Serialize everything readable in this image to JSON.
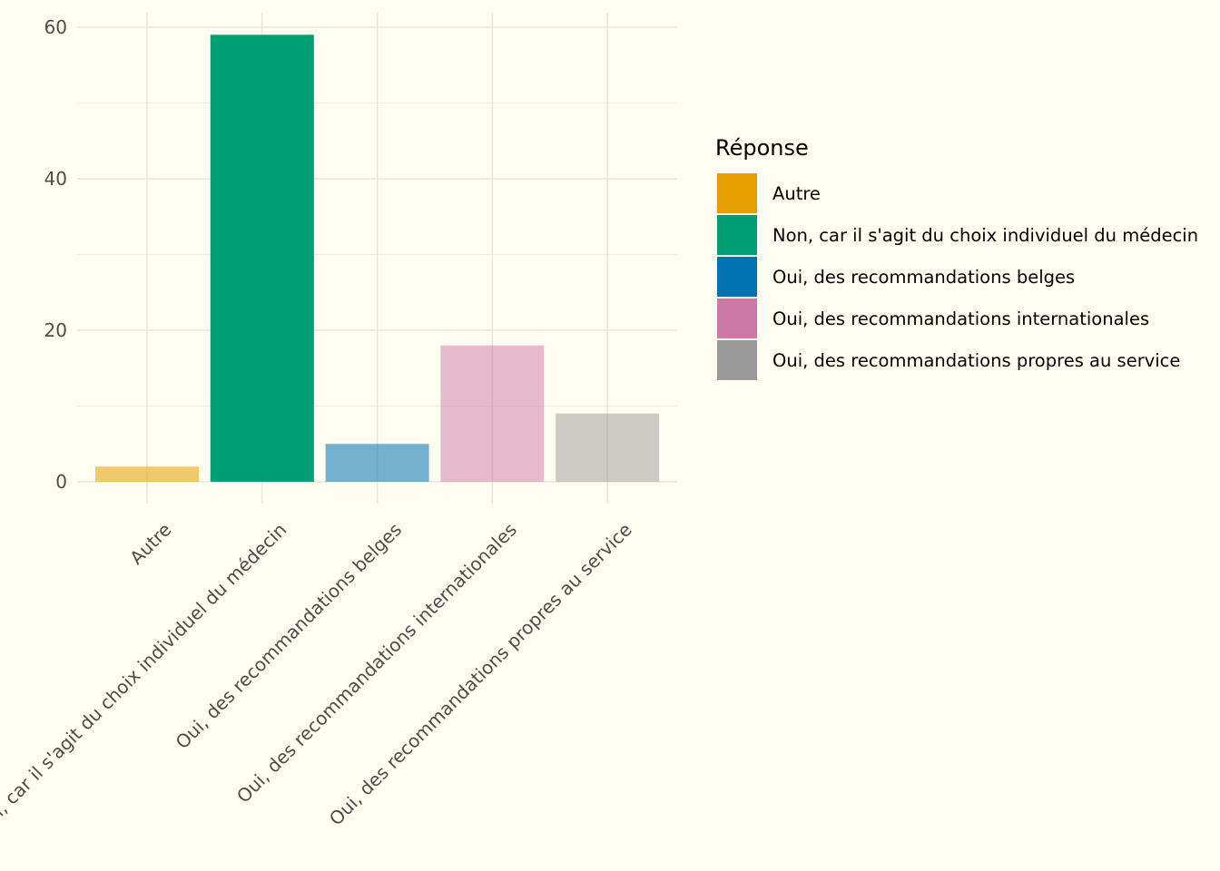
{
  "chart_data": {
    "type": "bar",
    "title": "",
    "xlabel": "",
    "ylabel": "",
    "categories": [
      "Autre",
      "Non, car il s'agit du choix individuel du médecin",
      "Oui, des recommandations belges",
      "Oui, des recommandations internationales",
      "Oui, des recommandations propres au service"
    ],
    "values": [
      2,
      59,
      5,
      18,
      9
    ],
    "y_ticks": [
      0,
      20,
      40,
      60
    ],
    "ylim": [
      0,
      60
    ],
    "grid": true,
    "legend": {
      "title": "Réponse",
      "placement": "right",
      "entries": [
        "Autre",
        "Non, car il s'agit du choix individuel du médecin",
        "Oui, des recommandations belges",
        "Oui, des recommandations internationales",
        "Oui, des recommandations propres au service"
      ]
    },
    "colors": [
      "#e69f00",
      "#009e73",
      "#0072b2",
      "#cc79a7",
      "#999999"
    ],
    "bar_opacity": [
      0.55,
      1.0,
      0.55,
      0.5,
      0.5
    ]
  }
}
